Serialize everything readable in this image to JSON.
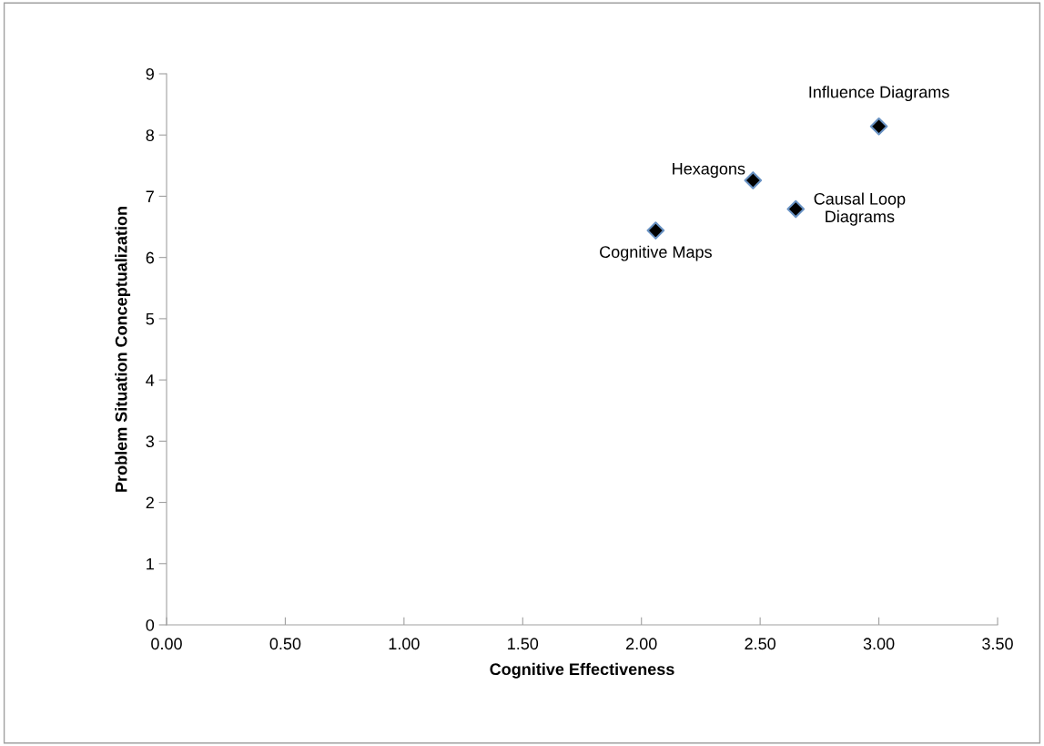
{
  "chart_data": {
    "type": "scatter",
    "xlabel": "Cognitive Effectiveness",
    "ylabel": "Problem Situation Conceptualization",
    "x": [
      3.0,
      2.47,
      2.65,
      2.06
    ],
    "series": [
      {
        "color": "#000000",
        "values": [
          8.14,
          7.26,
          6.79,
          6.44
        ]
      }
    ],
    "marker": "diamond",
    "grid": false,
    "legend": false,
    "xlim": [
      0,
      3.5
    ],
    "xticks": [
      {
        "value": 0,
        "label": "0.00"
      },
      {
        "value": 0.5,
        "label": "0.50"
      },
      {
        "value": 1,
        "label": "1.00"
      },
      {
        "value": 1.5,
        "label": "1.50"
      },
      {
        "value": 2,
        "label": "2.00"
      },
      {
        "value": 2.5,
        "label": "2.50"
      },
      {
        "value": 3,
        "label": "3.00"
      },
      {
        "value": 3.5,
        "label": "3.50"
      }
    ],
    "ylim": [
      0,
      9
    ],
    "yticks": [
      0,
      1,
      2,
      3,
      4,
      5,
      6,
      7,
      8,
      9
    ],
    "annotations": [
      {
        "text": "Influence Diagrams",
        "x": 3.0,
        "y": 8.14
      },
      {
        "text": "Hexagons",
        "x": 2.47,
        "y": 7.26
      },
      {
        "text": "Causal Loop\nDiagrams",
        "x": 2.65,
        "y": 6.79
      },
      {
        "text": "Cognitive Maps",
        "x": 2.06,
        "y": 6.44
      }
    ]
  }
}
